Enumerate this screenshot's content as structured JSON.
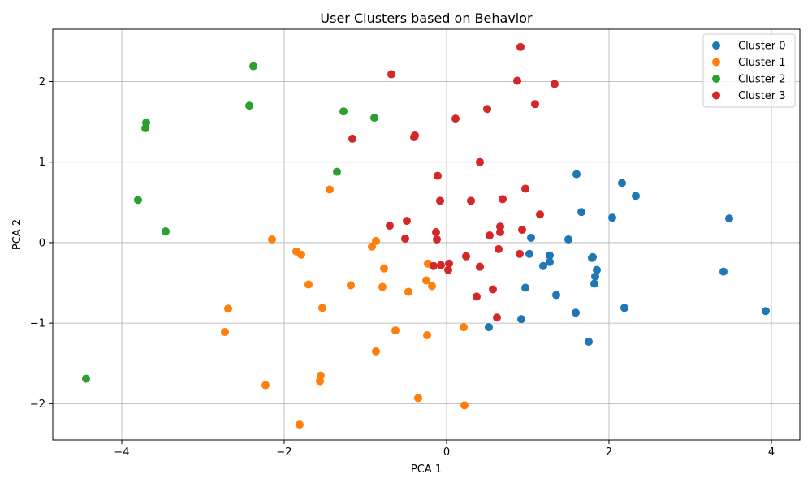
{
  "chart_data": {
    "type": "scatter",
    "title": "User Clusters based on Behavior",
    "xlabel": "PCA 1",
    "ylabel": "PCA 2",
    "xlim": [
      -4.85,
      4.35
    ],
    "ylim": [
      -2.45,
      2.65
    ],
    "xticks": [
      -4,
      -2,
      0,
      2,
      4
    ],
    "yticks": [
      -2,
      -1,
      0,
      1,
      2
    ],
    "xtick_labels": [
      "−4",
      "−2",
      "0",
      "2",
      "4"
    ],
    "ytick_labels": [
      "−2",
      "−1",
      "0",
      "1",
      "2"
    ],
    "grid": true,
    "legend_position": "top-right",
    "series": [
      {
        "name": "Cluster 0",
        "color": "#1f77b4",
        "points": [
          [
            1.6,
            0.85
          ],
          [
            2.16,
            0.74
          ],
          [
            2.33,
            0.58
          ],
          [
            1.66,
            0.38
          ],
          [
            2.04,
            0.31
          ],
          [
            3.48,
            0.3
          ],
          [
            1.04,
            0.06
          ],
          [
            1.5,
            0.04
          ],
          [
            1.02,
            -0.14
          ],
          [
            1.27,
            -0.16
          ],
          [
            1.27,
            -0.24
          ],
          [
            1.19,
            -0.29
          ],
          [
            1.79,
            -0.19
          ],
          [
            1.8,
            -0.18
          ],
          [
            1.85,
            -0.34
          ],
          [
            1.83,
            -0.42
          ],
          [
            1.82,
            -0.51
          ],
          [
            3.41,
            -0.36
          ],
          [
            0.97,
            -0.56
          ],
          [
            1.35,
            -0.65
          ],
          [
            2.19,
            -0.81
          ],
          [
            1.59,
            -0.87
          ],
          [
            0.92,
            -0.95
          ],
          [
            3.93,
            -0.85
          ],
          [
            0.52,
            -1.05
          ],
          [
            1.75,
            -1.23
          ]
        ]
      },
      {
        "name": "Cluster 1",
        "color": "#ff7f0e",
        "points": [
          [
            -1.44,
            0.66
          ],
          [
            -2.15,
            0.04
          ],
          [
            -0.87,
            0.02
          ],
          [
            -0.92,
            -0.05
          ],
          [
            -1.85,
            -0.11
          ],
          [
            -1.79,
            -0.15
          ],
          [
            -0.77,
            -0.32
          ],
          [
            -0.23,
            -0.26
          ],
          [
            -0.25,
            -0.47
          ],
          [
            -0.18,
            -0.54
          ],
          [
            -1.7,
            -0.52
          ],
          [
            -1.18,
            -0.53
          ],
          [
            -0.79,
            -0.55
          ],
          [
            -0.47,
            -0.61
          ],
          [
            -2.69,
            -0.82
          ],
          [
            -1.53,
            -0.81
          ],
          [
            -2.73,
            -1.11
          ],
          [
            -0.63,
            -1.09
          ],
          [
            -0.24,
            -1.15
          ],
          [
            0.21,
            -1.05
          ],
          [
            -0.87,
            -1.35
          ],
          [
            -1.55,
            -1.65
          ],
          [
            -1.56,
            -1.72
          ],
          [
            -2.23,
            -1.77
          ],
          [
            -0.35,
            -1.93
          ],
          [
            0.22,
            -2.02
          ],
          [
            -1.81,
            -2.26
          ]
        ]
      },
      {
        "name": "Cluster 2",
        "color": "#2ca02c",
        "points": [
          [
            -2.38,
            2.19
          ],
          [
            -2.43,
            1.7
          ],
          [
            -1.27,
            1.63
          ],
          [
            -0.89,
            1.55
          ],
          [
            -3.7,
            1.49
          ],
          [
            -3.71,
            1.42
          ],
          [
            -1.35,
            0.88
          ],
          [
            -3.8,
            0.53
          ],
          [
            -3.46,
            0.14
          ],
          [
            -4.44,
            -1.69
          ]
        ]
      },
      {
        "name": "Cluster 3",
        "color": "#d62728",
        "points": [
          [
            0.91,
            2.43
          ],
          [
            -0.68,
            2.09
          ],
          [
            0.87,
            2.01
          ],
          [
            1.33,
            1.97
          ],
          [
            1.09,
            1.72
          ],
          [
            0.5,
            1.66
          ],
          [
            0.11,
            1.54
          ],
          [
            -0.39,
            1.33
          ],
          [
            -0.4,
            1.31
          ],
          [
            -1.16,
            1.29
          ],
          [
            0.41,
            1.0
          ],
          [
            -0.11,
            0.83
          ],
          [
            0.97,
            0.67
          ],
          [
            0.69,
            0.54
          ],
          [
            -0.08,
            0.52
          ],
          [
            0.3,
            0.52
          ],
          [
            1.15,
            0.35
          ],
          [
            -0.49,
            0.27
          ],
          [
            -0.7,
            0.21
          ],
          [
            0.66,
            0.2
          ],
          [
            0.93,
            0.16
          ],
          [
            0.66,
            0.13
          ],
          [
            -0.13,
            0.13
          ],
          [
            0.53,
            0.09
          ],
          [
            -0.51,
            0.05
          ],
          [
            -0.12,
            0.04
          ],
          [
            0.64,
            -0.08
          ],
          [
            0.9,
            -0.14
          ],
          [
            0.24,
            -0.17
          ],
          [
            -0.16,
            -0.29
          ],
          [
            -0.07,
            -0.28
          ],
          [
            0.03,
            -0.26
          ],
          [
            0.41,
            -0.3
          ],
          [
            0.02,
            -0.34
          ],
          [
            0.57,
            -0.58
          ],
          [
            0.37,
            -0.67
          ],
          [
            0.62,
            -0.93
          ]
        ]
      }
    ]
  }
}
